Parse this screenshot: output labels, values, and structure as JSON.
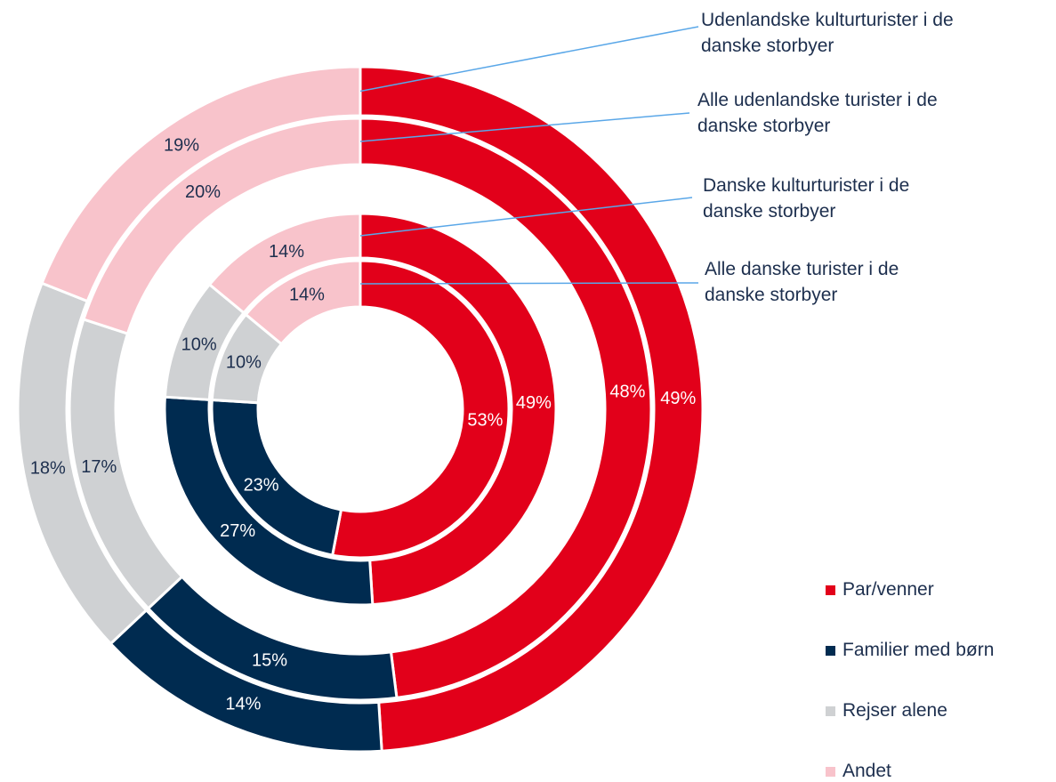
{
  "chart_data": {
    "type": "donut",
    "categories": [
      "Par/venner",
      "Familier med børn",
      "Rejser alene",
      "Andet"
    ],
    "colors": [
      "#e2001a",
      "#002b50",
      "#cfd1d3",
      "#f8c3cb"
    ],
    "series": [
      {
        "name": "Udenlandske kulturturister i de danske storbyer",
        "values": [
          49,
          14,
          18,
          19
        ],
        "value_labels": [
          "49%",
          "14%",
          "18%",
          "19%"
        ]
      },
      {
        "name": "Alle udenlandske turister i de danske storbyer",
        "values": [
          48,
          15,
          17,
          20
        ],
        "value_labels": [
          "48%",
          "15%",
          "17%",
          "20%"
        ]
      },
      {
        "name": "Danske kulturturister i de danske storbyer",
        "values": [
          49,
          27,
          10,
          14
        ],
        "value_labels": [
          "49%",
          "27%",
          "10%",
          "14%"
        ]
      },
      {
        "name": "Alle danske turister i de danske storbyer",
        "values": [
          53,
          23,
          10,
          14
        ],
        "value_labels": [
          "53%",
          "23%",
          "10%",
          "14%"
        ]
      }
    ],
    "legend": "bottom-right"
  }
}
